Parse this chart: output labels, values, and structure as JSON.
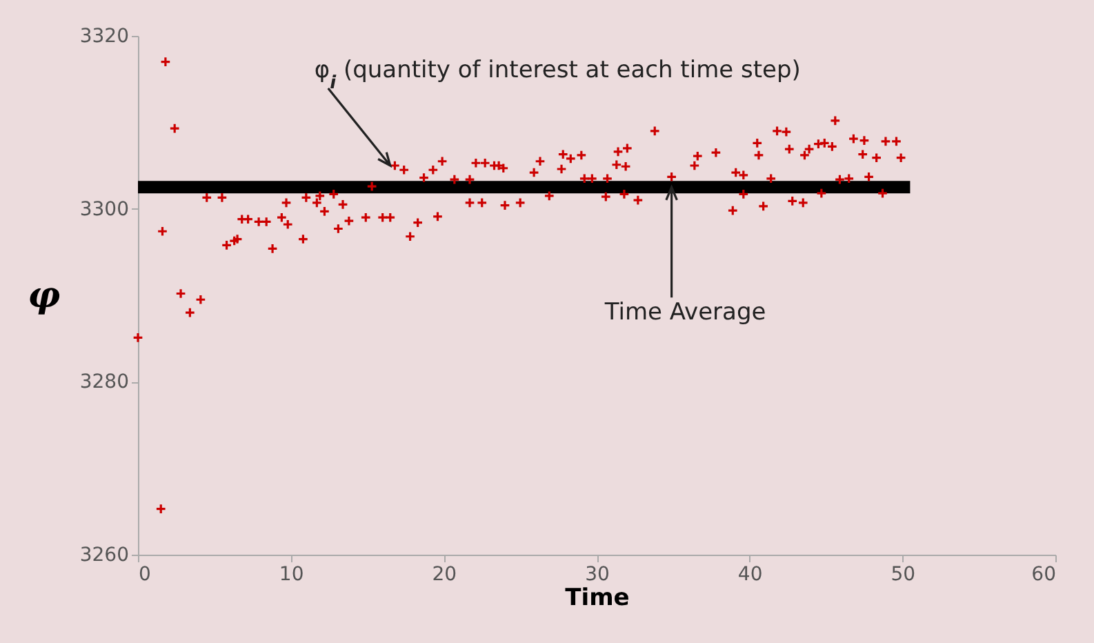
{
  "chart_data": {
    "type": "scatter",
    "xlabel": "Time",
    "ylabel": "φ",
    "xlim": [
      0,
      60
    ],
    "ylim": [
      3260,
      3320
    ],
    "xticks": [
      0,
      10,
      20,
      30,
      40,
      50,
      60
    ],
    "yticks": [
      3260,
      3280,
      3300,
      3320
    ],
    "grid": false,
    "annotations": [
      {
        "text": "φ$_{i}$ (quantity of interest at each time step)",
        "x": 16.5,
        "y": 3305
      },
      {
        "text": "Time Average",
        "x": 34.9,
        "y": 3302.5
      }
    ],
    "series": [
      {
        "color": "#cc0000",
        "marker": "cross",
        "x": [
          0,
          1.5,
          1.8,
          1.6,
          2.4,
          2.8,
          3.4,
          4.1,
          4.5,
          5.5,
          5.8,
          6.3,
          6.5,
          6.8,
          7.2,
          7.9,
          8.4,
          8.8,
          9.4,
          9.8,
          9.7,
          10.8,
          11,
          11.7,
          11.9,
          12.2,
          12.8,
          13.1,
          13.4,
          13.8,
          14.9,
          15.3,
          16,
          16.5,
          16.8,
          17.4,
          17.8,
          18.3,
          19.6,
          18.7,
          19.3,
          19.9,
          20.7,
          21.7,
          22.5,
          21.7,
          22.1,
          22.7,
          23.3,
          23.6,
          23.9,
          24,
          25,
          25.9,
          26.3,
          26.9,
          27.7,
          27.8,
          28.3,
          29,
          29.2,
          29.7,
          30.7,
          30.6,
          31.3,
          31.4,
          32,
          31.9,
          31.8,
          32.7,
          33.8,
          34.9,
          36.4,
          36.6,
          37.8,
          38.9,
          39.1,
          39.6,
          39.6,
          40.5,
          40.6,
          40.9,
          41.4,
          41.8,
          42.4,
          42.6,
          42.8,
          43.5,
          43.6,
          43.9,
          44.5,
          44.9,
          45.4,
          44.7,
          45.6,
          46.8,
          47.5,
          47.4,
          47.8,
          48.3,
          48.9,
          49.6,
          49.9,
          48.7,
          46.5,
          45.9
        ],
        "values": [
          3285.1,
          3265.3,
          3317,
          3297.4,
          3309.3,
          3290.2,
          3288,
          3289.5,
          3301.3,
          3301.3,
          3295.8,
          3296.3,
          3296.5,
          3298.8,
          3298.8,
          3298.5,
          3298.5,
          3295.4,
          3299,
          3298.2,
          3300.7,
          3296.5,
          3301.3,
          3300.7,
          3301.5,
          3299.7,
          3301.7,
          3297.7,
          3300.5,
          3298.6,
          3299,
          3302.6,
          3299,
          3299,
          3305,
          3304.5,
          3296.8,
          3298.4,
          3299.1,
          3303.6,
          3304.5,
          3305.5,
          3303.4,
          3300.7,
          3300.7,
          3303.4,
          3305.3,
          3305.3,
          3305,
          3305,
          3304.7,
          3300.4,
          3300.7,
          3304.2,
          3305.5,
          3301.5,
          3304.6,
          3306.3,
          3305.8,
          3306.2,
          3303.5,
          3303.5,
          3303.5,
          3301.4,
          3305.1,
          3306.6,
          3307,
          3304.9,
          3301.7,
          3301,
          3309,
          3303.7,
          3305,
          3306.1,
          3306.5,
          3299.8,
          3304.2,
          3303.9,
          3301.7,
          3307.6,
          3306.2,
          3300.3,
          3303.5,
          3309,
          3308.9,
          3306.9,
          3300.9,
          3300.7,
          3306.2,
          3306.9,
          3307.5,
          3307.6,
          3307.2,
          3301.8,
          3310.2,
          3308.1,
          3307.9,
          3306.3,
          3303.7,
          3305.9,
          3307.8,
          3307.8,
          3305.9,
          3301.8,
          3303.5,
          3303.4
        ]
      },
      {
        "type": "line",
        "color": "#000000",
        "x": [
          0,
          50.5
        ],
        "values": [
          3302.5,
          3302.5
        ]
      }
    ]
  }
}
